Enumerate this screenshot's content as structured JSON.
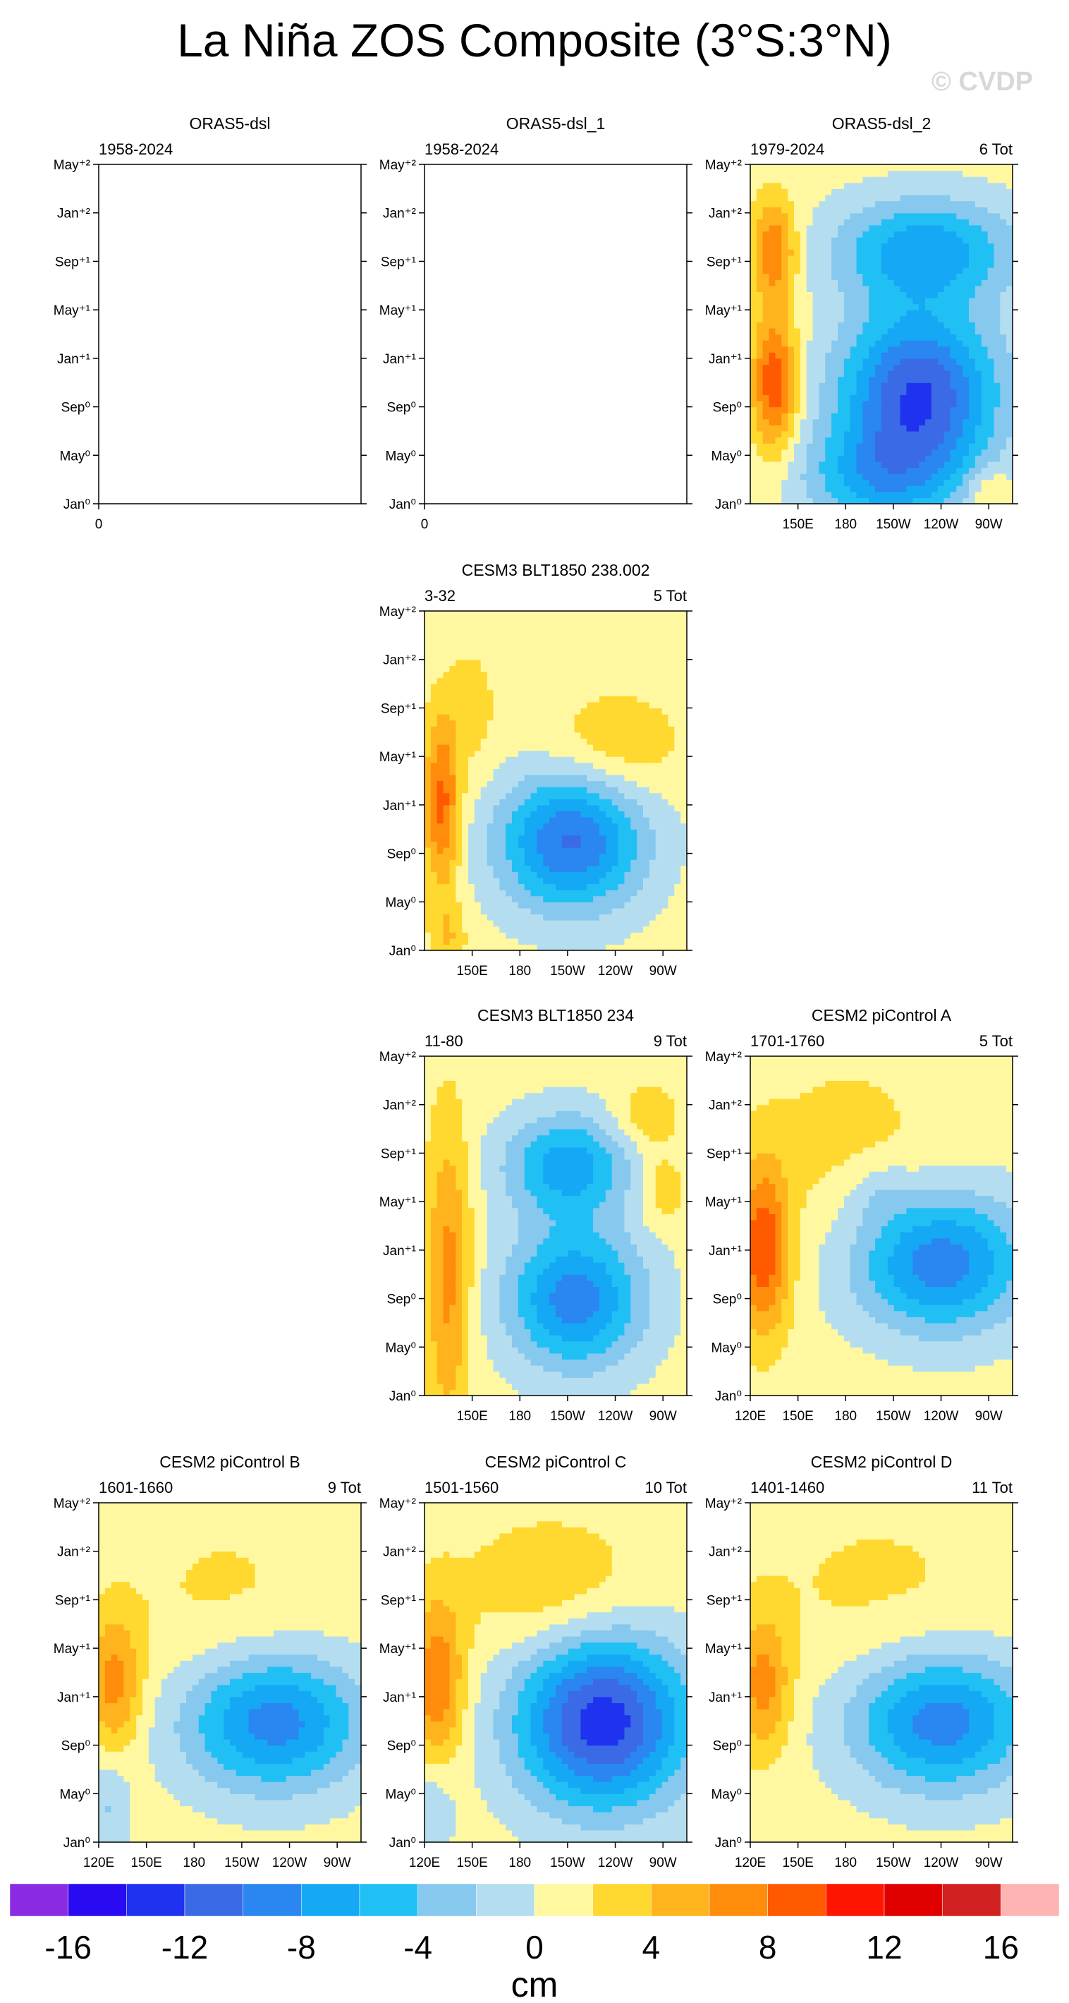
{
  "page": {
    "title": "La Niña ZOS Composite (3°S:3°N)",
    "watermark": "© CVDP"
  },
  "chart_data": [
    {
      "type": "heatmap",
      "id": "p1",
      "title": "ORAS5-dsl",
      "left_label": "1958-2024",
      "right_label": "",
      "has_data": false,
      "x_ticks": [
        "0"
      ],
      "y_ticks": [
        "Jan⁰",
        "May⁰",
        "Sep⁰",
        "Jan⁺¹",
        "May⁺¹",
        "Sep⁺¹",
        "Jan⁺²",
        "May⁺²"
      ]
    },
    {
      "type": "heatmap",
      "id": "p2",
      "title": "ORAS5-dsl_1",
      "left_label": "1958-2024",
      "right_label": "",
      "has_data": false,
      "x_ticks": [
        "0"
      ],
      "y_ticks": [
        "Jan⁰",
        "May⁰",
        "Sep⁰",
        "Jan⁺¹",
        "May⁺¹",
        "Sep⁺¹",
        "Jan⁺²",
        "May⁺²"
      ]
    },
    {
      "type": "heatmap",
      "id": "p3",
      "title": "ORAS5-dsl_2",
      "left_label": "1979-2024",
      "right_label": "6 Tot",
      "has_data": true,
      "x_ticks": [
        "150E",
        "180",
        "150W",
        "120W",
        "90W"
      ],
      "y_ticks": [
        "Jan⁰",
        "May⁰",
        "Sep⁰",
        "Jan⁺¹",
        "May⁺¹",
        "Sep⁺¹",
        "Jan⁺²",
        "May⁺²"
      ],
      "features": [
        {
          "lon": 135,
          "t": 10,
          "amp": 9,
          "sx": 10,
          "st": 4
        },
        {
          "lon": 135,
          "t": 21,
          "amp": 7,
          "sx": 10,
          "st": 3
        },
        {
          "lon": 226,
          "t": 9,
          "amp": -13,
          "sx": 35,
          "st": 5
        },
        {
          "lon": 230,
          "t": 21,
          "amp": -8,
          "sx": 40,
          "st": 3
        },
        {
          "lon": 200,
          "t": 2,
          "amp": -6,
          "sx": 35,
          "st": 3
        },
        {
          "lon": 270,
          "t": 1,
          "amp": 3,
          "sx": 10,
          "st": 1.5
        }
      ]
    },
    {
      "type": "heatmap",
      "id": "p4",
      "title": "CESM3 BLT1850 238.002",
      "left_label": "3-32",
      "right_label": "5 Tot",
      "has_data": true,
      "x_ticks": [
        "150E",
        "180",
        "150W",
        "120W",
        "90W"
      ],
      "y_ticks": [
        "Jan⁰",
        "May⁰",
        "Sep⁰",
        "Jan⁺¹",
        "May⁺¹",
        "Sep⁺¹",
        "Jan⁺²",
        "May⁺²"
      ],
      "features": [
        {
          "lon": 131,
          "t": 12,
          "amp": 8,
          "sx": 8,
          "st": 5
        },
        {
          "lon": 212,
          "t": 9,
          "amp": -11,
          "sx": 32,
          "st": 4
        },
        {
          "lon": 240,
          "t": 17,
          "amp": 3,
          "sx": 30,
          "st": 3
        },
        {
          "lon": 150,
          "t": 20,
          "amp": 2,
          "sx": 12,
          "st": 4
        },
        {
          "lon": 135,
          "t": 1,
          "amp": 3,
          "sx": 8,
          "st": 2
        }
      ]
    },
    {
      "type": "heatmap",
      "id": "p5",
      "title": "CESM3 BLT1850 234",
      "left_label": "11-80",
      "right_label": "9 Tot",
      "has_data": true,
      "x_ticks": [
        "150E",
        "180",
        "150W",
        "120W",
        "90W"
      ],
      "y_ticks": [
        "Jan⁰",
        "May⁰",
        "Sep⁰",
        "Jan⁺¹",
        "May⁺¹",
        "Sep⁺¹",
        "Jan⁺²",
        "May⁺²"
      ],
      "features": [
        {
          "lon": 135,
          "t": 10,
          "amp": 6,
          "sx": 10,
          "st": 9
        },
        {
          "lon": 215,
          "t": 8,
          "amp": -10,
          "sx": 30,
          "st": 4
        },
        {
          "lon": 210,
          "t": 19,
          "amp": -8,
          "sx": 28,
          "st": 3
        },
        {
          "lon": 270,
          "t": 17,
          "amp": 3,
          "sx": 10,
          "st": 2
        },
        {
          "lon": 260,
          "t": 23,
          "amp": 3,
          "sx": 15,
          "st": 2
        }
      ]
    },
    {
      "type": "heatmap",
      "id": "p6",
      "title": "CESM2 piControl A",
      "left_label": "1701-1760",
      "right_label": "5 Tot",
      "has_data": true,
      "x_ticks": [
        "120E",
        "150E",
        "180",
        "150W",
        "120W",
        "90W"
      ],
      "y_ticks": [
        "Jan⁰",
        "May⁰",
        "Sep⁰",
        "Jan⁺¹",
        "May⁺¹",
        "Sep⁺¹",
        "Jan⁺²",
        "May⁺²"
      ],
      "features": [
        {
          "lon": 128,
          "t": 12,
          "amp": 9,
          "sx": 12,
          "st": 5
        },
        {
          "lon": 240,
          "t": 11,
          "amp": -10,
          "sx": 38,
          "st": 4
        },
        {
          "lon": 180,
          "t": 21,
          "amp": 2,
          "sx": 40,
          "st": 5
        },
        {
          "lon": 200,
          "t": 17,
          "amp": -2,
          "sx": 15,
          "st": 2
        }
      ]
    },
    {
      "type": "heatmap",
      "id": "p7",
      "title": "CESM2 piControl B",
      "left_label": "1601-1660",
      "right_label": "9 Tot",
      "has_data": true,
      "x_ticks": [
        "120E",
        "150E",
        "180",
        "150W",
        "120W",
        "90W"
      ],
      "y_ticks": [
        "Jan⁰",
        "May⁰",
        "Sep⁰",
        "Jan⁺¹",
        "May⁺¹",
        "Sep⁺¹",
        "Jan⁺²",
        "May⁺²"
      ],
      "features": [
        {
          "lon": 130,
          "t": 13,
          "amp": 6,
          "sx": 12,
          "st": 4
        },
        {
          "lon": 230,
          "t": 10,
          "amp": -10,
          "sx": 40,
          "st": 4
        },
        {
          "lon": 200,
          "t": 20,
          "amp": 1.5,
          "sx": 50,
          "st": 6
        },
        {
          "lon": 125,
          "t": 3,
          "amp": -3,
          "sx": 10,
          "st": 3
        }
      ]
    },
    {
      "type": "heatmap",
      "id": "p8",
      "title": "CESM2 piControl C",
      "left_label": "1501-1560",
      "right_label": "10 Tot",
      "has_data": true,
      "x_ticks": [
        "120E",
        "150E",
        "180",
        "150W",
        "120W",
        "90W"
      ],
      "y_ticks": [
        "Jan⁰",
        "May⁰",
        "Sep⁰",
        "Jan⁺¹",
        "May⁺¹",
        "Sep⁺¹",
        "Jan⁺²",
        "May⁺²"
      ],
      "features": [
        {
          "lon": 128,
          "t": 13,
          "amp": 7,
          "sx": 12,
          "st": 5
        },
        {
          "lon": 232,
          "t": 10,
          "amp": -14,
          "sx": 38,
          "st": 5
        },
        {
          "lon": 200,
          "t": 21,
          "amp": 3,
          "sx": 40,
          "st": 4
        },
        {
          "lon": 125,
          "t": 3,
          "amp": -3,
          "sx": 10,
          "st": 3
        }
      ]
    },
    {
      "type": "heatmap",
      "id": "p9",
      "title": "CESM2 piControl D",
      "left_label": "1401-1460",
      "right_label": "11 Tot",
      "has_data": true,
      "x_ticks": [
        "120E",
        "150E",
        "180",
        "150W",
        "120W",
        "90W"
      ],
      "y_ticks": [
        "Jan⁰",
        "May⁰",
        "Sep⁰",
        "Jan⁺¹",
        "May⁺¹",
        "Sep⁺¹",
        "Jan⁺²",
        "May⁺²"
      ],
      "features": [
        {
          "lon": 128,
          "t": 13,
          "amp": 6,
          "sx": 12,
          "st": 4
        },
        {
          "lon": 240,
          "t": 10,
          "amp": -10,
          "sx": 40,
          "st": 4
        },
        {
          "lon": 200,
          "t": 21,
          "amp": 1.5,
          "sx": 60,
          "st": 6
        }
      ]
    }
  ],
  "colorbar": {
    "unit": "cm",
    "levels": [
      -16,
      -14,
      -12,
      -10,
      -8,
      -6,
      -4,
      -2,
      0,
      2,
      4,
      6,
      8,
      10,
      12,
      14,
      16
    ],
    "tick_labels": [
      "-16",
      "-12",
      "-8",
      "-4",
      "0",
      "4",
      "8",
      "12",
      "16"
    ],
    "colors": [
      "#8A2BE2",
      "#2A0AF0",
      "#1E32F0",
      "#3A6AE6",
      "#2A86F0",
      "#15A8F5",
      "#20C0F5",
      "#87C8EE",
      "#B4DEF0",
      "#FFF8A0",
      "#FFD830",
      "#FFB41E",
      "#FF8C0A",
      "#FF5A00",
      "#FF1400",
      "#E00000",
      "#D02020",
      "#FFB4B4"
    ]
  }
}
